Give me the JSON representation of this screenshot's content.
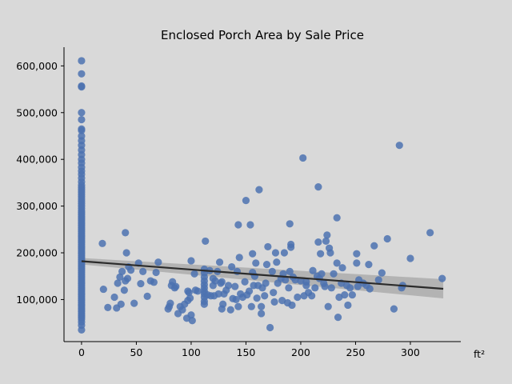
{
  "chart_data": {
    "type": "scatter",
    "title": "Enclosed Porch Area by Sale Price",
    "xlabel": "ft²",
    "ylabel": "",
    "xlim": [
      -16,
      346
    ],
    "ylim": [
      10000,
      640000
    ],
    "xticks": [
      0,
      50,
      100,
      150,
      200,
      250,
      300
    ],
    "yticks": [
      100000,
      200000,
      300000,
      400000,
      500000,
      600000
    ],
    "ytick_labels": [
      "100,000",
      "200,000",
      "300,000",
      "400,000",
      "500,000",
      "600,000"
    ],
    "grid": false,
    "point_color": "#4c72b0",
    "regression": {
      "x": [
        0,
        330
      ],
      "y": [
        182000,
        123000
      ],
      "ci_color": "#a6a6a6"
    },
    "zero_column_y": [
      35000,
      45000,
      52000,
      58000,
      62000,
      66000,
      70000,
      74000,
      78000,
      82000,
      86000,
      90000,
      94000,
      98000,
      102000,
      106000,
      110000,
      114000,
      118000,
      122000,
      126000,
      130000,
      134000,
      138000,
      142000,
      146000,
      150000,
      154000,
      158000,
      162000,
      166000,
      170000,
      174000,
      178000,
      182000,
      186000,
      190000,
      194000,
      198000,
      202000,
      206000,
      210000,
      214000,
      218000,
      222000,
      226000,
      230000,
      234000,
      238000,
      242000,
      246000,
      250000,
      254000,
      258000,
      262000,
      266000,
      270000,
      274000,
      278000,
      282000,
      286000,
      290000,
      295000,
      300000,
      305000,
      310000,
      315000,
      320000,
      325000,
      330000,
      335000,
      340000,
      345000,
      352000,
      360000,
      368000,
      375000,
      383000,
      392000,
      400000,
      410000,
      420000,
      430000,
      440000,
      450000,
      462000,
      465000,
      485000,
      500000,
      555000,
      557000,
      583000,
      611000
    ],
    "points": [
      [
        19,
        220000
      ],
      [
        20,
        122000
      ],
      [
        24,
        83000
      ],
      [
        30,
        105000
      ],
      [
        32,
        82000
      ],
      [
        33,
        135000
      ],
      [
        35,
        148000
      ],
      [
        36,
        90000
      ],
      [
        37,
        160000
      ],
      [
        39,
        120000
      ],
      [
        40,
        140000
      ],
      [
        40,
        243000
      ],
      [
        41,
        200000
      ],
      [
        42,
        145000
      ],
      [
        43,
        170000
      ],
      [
        45,
        163000
      ],
      [
        48,
        92000
      ],
      [
        52,
        178000
      ],
      [
        54,
        134000
      ],
      [
        56,
        160000
      ],
      [
        60,
        107000
      ],
      [
        63,
        140000
      ],
      [
        66,
        137000
      ],
      [
        68,
        158000
      ],
      [
        70,
        180000
      ],
      [
        79,
        80000
      ],
      [
        80,
        85000
      ],
      [
        81,
        92000
      ],
      [
        82,
        130000
      ],
      [
        83,
        138000
      ],
      [
        85,
        125000
      ],
      [
        86,
        128000
      ],
      [
        88,
        70000
      ],
      [
        90,
        85000
      ],
      [
        92,
        78000
      ],
      [
        94,
        90000
      ],
      [
        96,
        60000
      ],
      [
        97,
        98000
      ],
      [
        97,
        118000
      ],
      [
        98,
        115000
      ],
      [
        99,
        103000
      ],
      [
        100,
        183000
      ],
      [
        100,
        67000
      ],
      [
        101,
        55000
      ],
      [
        103,
        155000
      ],
      [
        104,
        120000
      ],
      [
        106,
        118000
      ],
      [
        112,
        90000
      ],
      [
        112,
        96000
      ],
      [
        112,
        105000
      ],
      [
        112,
        112000
      ],
      [
        112,
        118000
      ],
      [
        112,
        125000
      ],
      [
        112,
        132000
      ],
      [
        112,
        140000
      ],
      [
        112,
        148000
      ],
      [
        112,
        157000
      ],
      [
        112,
        165000
      ],
      [
        113,
        225000
      ],
      [
        115,
        110000
      ],
      [
        117,
        162000
      ],
      [
        118,
        108000
      ],
      [
        120,
        130000
      ],
      [
        120,
        145000
      ],
      [
        121,
        108000
      ],
      [
        122,
        140000
      ],
      [
        124,
        160000
      ],
      [
        125,
        112000
      ],
      [
        126,
        180000
      ],
      [
        127,
        135000
      ],
      [
        128,
        80000
      ],
      [
        128,
        138000
      ],
      [
        129,
        90000
      ],
      [
        130,
        112000
      ],
      [
        132,
        120000
      ],
      [
        134,
        130000
      ],
      [
        136,
        78000
      ],
      [
        137,
        170000
      ],
      [
        138,
        102000
      ],
      [
        140,
        128000
      ],
      [
        141,
        100000
      ],
      [
        142,
        160000
      ],
      [
        143,
        85000
      ],
      [
        143,
        260000
      ],
      [
        144,
        190000
      ],
      [
        145,
        112000
      ],
      [
        147,
        105000
      ],
      [
        149,
        138000
      ],
      [
        150,
        312000
      ],
      [
        151,
        110000
      ],
      [
        153,
        118000
      ],
      [
        154,
        260000
      ],
      [
        155,
        85000
      ],
      [
        156,
        198000
      ],
      [
        156,
        158000
      ],
      [
        157,
        130000
      ],
      [
        158,
        150000
      ],
      [
        159,
        178000
      ],
      [
        160,
        103000
      ],
      [
        161,
        130000
      ],
      [
        162,
        335000
      ],
      [
        164,
        70000
      ],
      [
        164,
        85000
      ],
      [
        165,
        125000
      ],
      [
        167,
        108000
      ],
      [
        168,
        135000
      ],
      [
        169,
        175000
      ],
      [
        170,
        213000
      ],
      [
        172,
        40000
      ],
      [
        174,
        160000
      ],
      [
        175,
        115000
      ],
      [
        176,
        95000
      ],
      [
        177,
        200000
      ],
      [
        178,
        180000
      ],
      [
        179,
        135000
      ],
      [
        182,
        145000
      ],
      [
        183,
        98000
      ],
      [
        184,
        155000
      ],
      [
        185,
        200000
      ],
      [
        186,
        142000
      ],
      [
        188,
        93000
      ],
      [
        189,
        125000
      ],
      [
        190,
        160000
      ],
      [
        190,
        262000
      ],
      [
        191,
        218000
      ],
      [
        191,
        212000
      ],
      [
        192,
        88000
      ],
      [
        193,
        148000
      ],
      [
        195,
        142000
      ],
      [
        197,
        105000
      ],
      [
        200,
        140000
      ],
      [
        202,
        403000
      ],
      [
        203,
        108000
      ],
      [
        205,
        138000
      ],
      [
        205,
        130000
      ],
      [
        207,
        115000
      ],
      [
        210,
        108000
      ],
      [
        211,
        162000
      ],
      [
        213,
        125000
      ],
      [
        215,
        150000
      ],
      [
        216,
        341000
      ],
      [
        216,
        223000
      ],
      [
        217,
        145000
      ],
      [
        218,
        198000
      ],
      [
        219,
        155000
      ],
      [
        221,
        135000
      ],
      [
        222,
        128000
      ],
      [
        223,
        225000
      ],
      [
        224,
        238000
      ],
      [
        225,
        85000
      ],
      [
        226,
        210000
      ],
      [
        227,
        200000
      ],
      [
        228,
        125000
      ],
      [
        230,
        155000
      ],
      [
        233,
        275000
      ],
      [
        233,
        178000
      ],
      [
        234,
        62000
      ],
      [
        235,
        105000
      ],
      [
        237,
        135000
      ],
      [
        238,
        168000
      ],
      [
        240,
        110000
      ],
      [
        242,
        130000
      ],
      [
        243,
        88000
      ],
      [
        245,
        125000
      ],
      [
        247,
        110000
      ],
      [
        251,
        198000
      ],
      [
        251,
        178000
      ],
      [
        252,
        128000
      ],
      [
        253,
        142000
      ],
      [
        257,
        135000
      ],
      [
        260,
        130000
      ],
      [
        262,
        175000
      ],
      [
        263,
        123000
      ],
      [
        267,
        215000
      ],
      [
        271,
        142000
      ],
      [
        274,
        157000
      ],
      [
        279,
        230000
      ],
      [
        285,
        80000
      ],
      [
        290,
        430000
      ],
      [
        292,
        125000
      ],
      [
        293,
        130000
      ],
      [
        300,
        188000
      ],
      [
        318,
        243000
      ],
      [
        329,
        145000
      ]
    ]
  }
}
